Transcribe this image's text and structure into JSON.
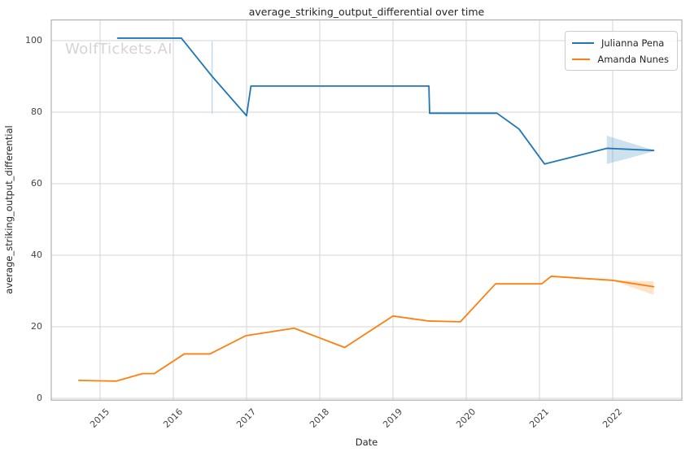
{
  "watermark": "WolfTickets.AI",
  "chart_data": {
    "type": "line",
    "title": "average_striking_output_differential over time",
    "xlabel": "Date",
    "ylabel": "average_striking_output_differential",
    "x_ticks": [
      2015,
      2016,
      2017,
      2018,
      2019,
      2020,
      2021,
      2022
    ],
    "y_ticks": [
      0,
      20,
      40,
      60,
      80,
      100
    ],
    "xlim": [
      2014.33,
      2022.94
    ],
    "ylim": [
      -0.5,
      105.9
    ],
    "grid": true,
    "legend_position": "upper right",
    "series": [
      {
        "name": "Julianna Pena",
        "color": "#1f77b4",
        "points": [
          [
            2015.24,
            100.7
          ],
          [
            2016.11,
            100.7
          ],
          [
            2016.53,
            90.0
          ],
          [
            2017.0,
            79.0
          ],
          [
            2017.06,
            87.3
          ],
          [
            2019.49,
            87.3
          ],
          [
            2019.5,
            79.7
          ],
          [
            2020.42,
            79.7
          ],
          [
            2020.72,
            75.3
          ],
          [
            2021.07,
            65.5
          ],
          [
            2021.92,
            69.9
          ],
          [
            2022.56,
            69.3
          ]
        ]
      },
      {
        "name": "Amanda Nunes",
        "color": "#ff7f0e",
        "points": [
          [
            2014.71,
            5.0
          ],
          [
            2015.22,
            4.8
          ],
          [
            2015.58,
            6.9
          ],
          [
            2015.74,
            6.9
          ],
          [
            2016.15,
            12.4
          ],
          [
            2016.5,
            12.4
          ],
          [
            2016.99,
            17.5
          ],
          [
            2017.65,
            19.6
          ],
          [
            2018.34,
            14.2
          ],
          [
            2019.0,
            23.0
          ],
          [
            2019.49,
            21.6
          ],
          [
            2019.92,
            21.4
          ],
          [
            2020.4,
            32.0
          ],
          [
            2021.03,
            32.0
          ],
          [
            2021.16,
            34.1
          ],
          [
            2021.99,
            33.0
          ],
          [
            2022.56,
            31.2
          ]
        ]
      }
    ],
    "bands": [
      {
        "series": "Julianna Pena",
        "color": "#1f77b4",
        "opacity": 0.22,
        "top": [
          [
            2021.92,
            73.4
          ],
          [
            2022.56,
            69.4
          ]
        ],
        "bottom": [
          [
            2021.92,
            65.5
          ],
          [
            2022.56,
            69.0
          ]
        ]
      },
      {
        "series": "Amanda Nunes",
        "color": "#ff7f0e",
        "opacity": 0.22,
        "top": [
          [
            2021.99,
            33.0
          ],
          [
            2022.56,
            32.7
          ]
        ],
        "bottom": [
          [
            2021.99,
            33.0
          ],
          [
            2022.56,
            28.9
          ]
        ]
      }
    ],
    "annotations": [
      {
        "type": "vertical-segment",
        "x": 2016.53,
        "y1": 79.5,
        "y2": 99.8,
        "color": "#bcd6ec"
      }
    ]
  }
}
